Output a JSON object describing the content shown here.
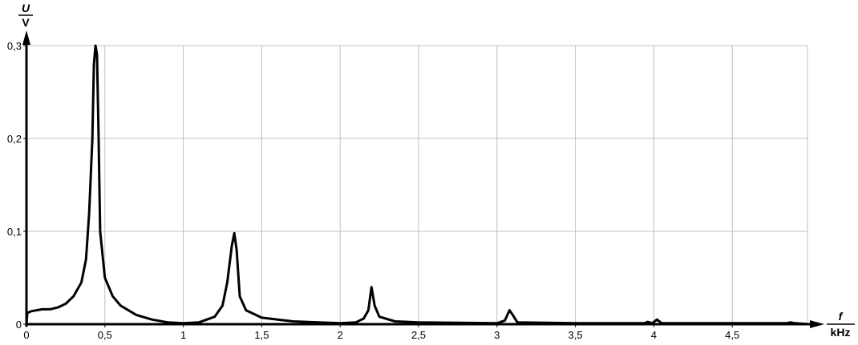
{
  "chart_data": {
    "type": "line",
    "title": "",
    "xlabel": {
      "quantity": "f",
      "unit": "kHz"
    },
    "ylabel": {
      "quantity": "U",
      "unit": "V"
    },
    "xlim": [
      0,
      5
    ],
    "ylim": [
      0,
      0.3
    ],
    "grid": true,
    "x_ticks": [
      0,
      0.5,
      1,
      1.5,
      2,
      2.5,
      3,
      3.5,
      4,
      4.5
    ],
    "x_tick_labels": [
      "0",
      "0,5",
      "1",
      "1,5",
      "2",
      "2,5",
      "3",
      "3,5",
      "4",
      "4,5"
    ],
    "y_ticks": [
      0,
      0.1,
      0.2,
      0.3
    ],
    "y_tick_labels": [
      "0",
      "0,1",
      "0,2",
      "0,3"
    ],
    "line_color": "#000000",
    "grid_color": "#c0c0c0",
    "series": [
      {
        "x": [
          0,
          0.005,
          0.03,
          0.1,
          0.15,
          0.2,
          0.25,
          0.3,
          0.35,
          0.38,
          0.4,
          0.42,
          0.43,
          0.44,
          0.45,
          0.46,
          0.47,
          0.5,
          0.55,
          0.6,
          0.7,
          0.8,
          0.9,
          1.0,
          1.1,
          1.2,
          1.25,
          1.28,
          1.31,
          1.325,
          1.34,
          1.36,
          1.4,
          1.5,
          1.7,
          2.0,
          2.1,
          2.15,
          2.18,
          2.2,
          2.22,
          2.25,
          2.35,
          2.5,
          3.0,
          3.05,
          3.08,
          3.1,
          3.13,
          3.5,
          3.94,
          3.96,
          3.99,
          4.02,
          4.05,
          4.85,
          4.87,
          4.9,
          4.99
        ],
        "y": [
          0,
          0.012,
          0.014,
          0.016,
          0.016,
          0.018,
          0.022,
          0.03,
          0.045,
          0.07,
          0.12,
          0.2,
          0.28,
          0.3,
          0.29,
          0.2,
          0.1,
          0.05,
          0.03,
          0.02,
          0.01,
          0.005,
          0.002,
          0.001,
          0.002,
          0.008,
          0.02,
          0.045,
          0.085,
          0.098,
          0.08,
          0.03,
          0.015,
          0.007,
          0.003,
          0.001,
          0.002,
          0.006,
          0.015,
          0.04,
          0.02,
          0.008,
          0.003,
          0.002,
          0.001,
          0.004,
          0.015,
          0.01,
          0.002,
          0.001,
          0.001,
          0.0025,
          0.001,
          0.005,
          0.001,
          0.001,
          0.002,
          0.001,
          0
        ]
      }
    ]
  }
}
